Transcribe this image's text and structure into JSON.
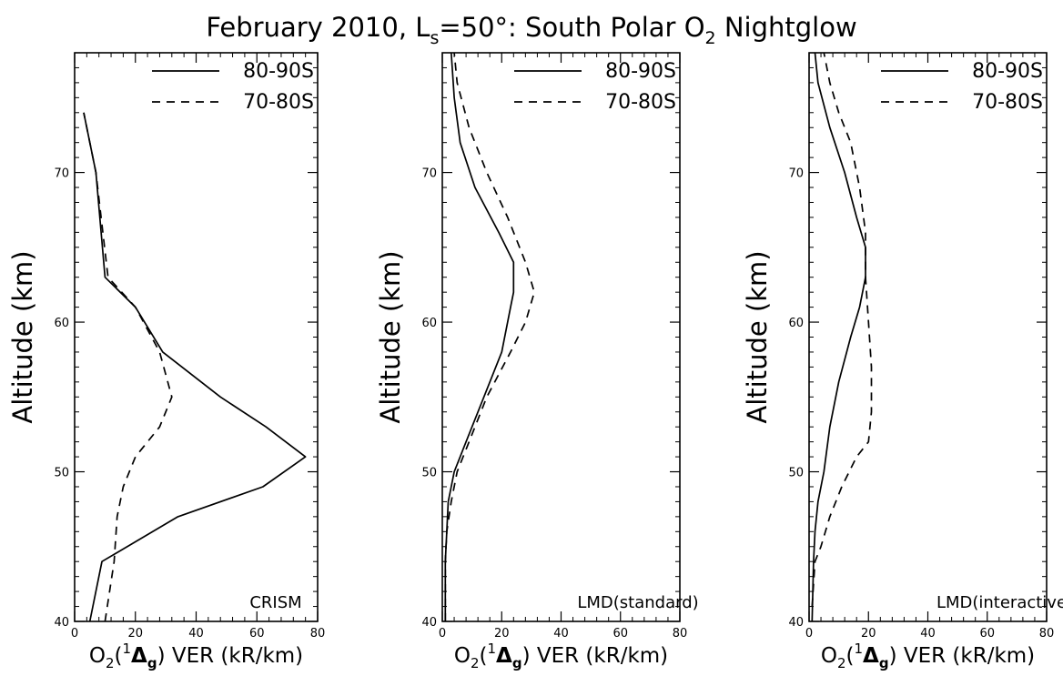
{
  "figure": {
    "title_main": "February 2010, L",
    "title_sub": "s",
    "title_rest": "=50°: South Polar O",
    "title_sub2": "2",
    "title_end": " Nightglow"
  },
  "chart_data": [
    {
      "type": "line",
      "panel_label": "CRISM",
      "xlabel_pre": "O",
      "xlabel_sub": "2",
      "xlabel_mid": "(",
      "xlabel_sup": "1",
      "xlabel_delta": "Δ",
      "xlabel_gsub": "g",
      "xlabel_post": ") VER (kR/km)",
      "ylabel": "Altitude (km)",
      "xlim": [
        0,
        80
      ],
      "ylim": [
        40,
        78
      ],
      "xticks": [
        0,
        20,
        40,
        60,
        80
      ],
      "yticks": [
        40,
        50,
        60,
        70
      ],
      "legend_position": "top-right",
      "series": [
        {
          "name": "80-90S",
          "style": "solid",
          "points": [
            [
              5,
              40
            ],
            [
              9,
              44
            ],
            [
              34,
              47
            ],
            [
              62,
              49
            ],
            [
              76,
              51
            ],
            [
              63,
              53
            ],
            [
              48,
              55
            ],
            [
              29,
              58
            ],
            [
              20,
              61
            ],
            [
              10,
              63
            ],
            [
              7,
              70
            ],
            [
              3,
              74
            ]
          ]
        },
        {
          "name": "70-80S",
          "style": "dashed",
          "points": [
            [
              10,
              40
            ],
            [
              13,
              44
            ],
            [
              14,
              47
            ],
            [
              16,
              49
            ],
            [
              20,
              51
            ],
            [
              28,
              53
            ],
            [
              32,
              55
            ],
            [
              28,
              58
            ],
            [
              20,
              61
            ],
            [
              11,
              63
            ],
            [
              7,
              70
            ],
            [
              3,
              74
            ]
          ]
        }
      ]
    },
    {
      "type": "line",
      "panel_label": "LMD(standard)",
      "xlabel_pre": "O",
      "xlabel_sub": "2",
      "xlabel_mid": "(",
      "xlabel_sup": "1",
      "xlabel_delta": "Δ",
      "xlabel_gsub": "g",
      "xlabel_post": ") VER (kR/km)",
      "ylabel": "Altitude (km)",
      "xlim": [
        0,
        80
      ],
      "ylim": [
        40,
        78
      ],
      "xticks": [
        0,
        20,
        40,
        60,
        80
      ],
      "yticks": [
        40,
        50,
        60,
        70
      ],
      "legend_position": "top-right",
      "series": [
        {
          "name": "80-90S",
          "style": "solid",
          "points": [
            [
              1,
              40
            ],
            [
              1,
              44
            ],
            [
              1.5,
              46
            ],
            [
              2,
              48
            ],
            [
              4,
              50
            ],
            [
              8,
              52
            ],
            [
              14,
              55
            ],
            [
              20,
              58
            ],
            [
              23,
              61
            ],
            [
              24,
              62
            ],
            [
              24,
              64
            ],
            [
              19,
              66
            ],
            [
              11,
              69
            ],
            [
              6,
              72
            ],
            [
              4,
              75
            ],
            [
              3,
              78
            ]
          ]
        },
        {
          "name": "70-80S",
          "style": "dashed",
          "points": [
            [
              1,
              40
            ],
            [
              1,
              44
            ],
            [
              1.5,
              46
            ],
            [
              3,
              48
            ],
            [
              5,
              50
            ],
            [
              9,
              52
            ],
            [
              15,
              55
            ],
            [
              23,
              58
            ],
            [
              28,
              60
            ],
            [
              31,
              62
            ],
            [
              28,
              64
            ],
            [
              22,
              67
            ],
            [
              15,
              70
            ],
            [
              9,
              73
            ],
            [
              5,
              76
            ],
            [
              4,
              78
            ]
          ]
        }
      ]
    },
    {
      "type": "line",
      "panel_label": "LMD(interactive)",
      "xlabel_pre": "O",
      "xlabel_sub": "2",
      "xlabel_mid": "(",
      "xlabel_sup": "1",
      "xlabel_delta": "Δ",
      "xlabel_gsub": "g",
      "xlabel_post": ") VER (kR/km)",
      "ylabel": "Altitude (km)",
      "xlim": [
        0,
        80
      ],
      "ylim": [
        40,
        78
      ],
      "xticks": [
        0,
        20,
        40,
        60,
        80
      ],
      "yticks": [
        40,
        50,
        60,
        70
      ],
      "legend_position": "top-right",
      "series": [
        {
          "name": "80-90S",
          "style": "solid",
          "points": [
            [
              1,
              40
            ],
            [
              1.5,
              44
            ],
            [
              2,
              46
            ],
            [
              3,
              48
            ],
            [
              5,
              50
            ],
            [
              7,
              53
            ],
            [
              10,
              56
            ],
            [
              14,
              59
            ],
            [
              17,
              61
            ],
            [
              19,
              63
            ],
            [
              19,
              65
            ],
            [
              16,
              67
            ],
            [
              12,
              70
            ],
            [
              7,
              73
            ],
            [
              3,
              76
            ],
            [
              2,
              78
            ]
          ]
        },
        {
          "name": "70-80S",
          "style": "dashed",
          "points": [
            [
              1,
              41
            ],
            [
              2,
              44
            ],
            [
              4,
              45
            ],
            [
              7,
              47
            ],
            [
              11,
              49
            ],
            [
              16,
              51
            ],
            [
              20,
              52
            ],
            [
              21,
              54
            ],
            [
              21,
              57
            ],
            [
              20,
              60
            ],
            [
              19,
              63
            ],
            [
              19,
              66
            ],
            [
              17,
              69
            ],
            [
              14,
              72
            ],
            [
              10,
              74
            ],
            [
              7,
              76
            ],
            [
              5,
              78
            ]
          ]
        }
      ]
    }
  ]
}
